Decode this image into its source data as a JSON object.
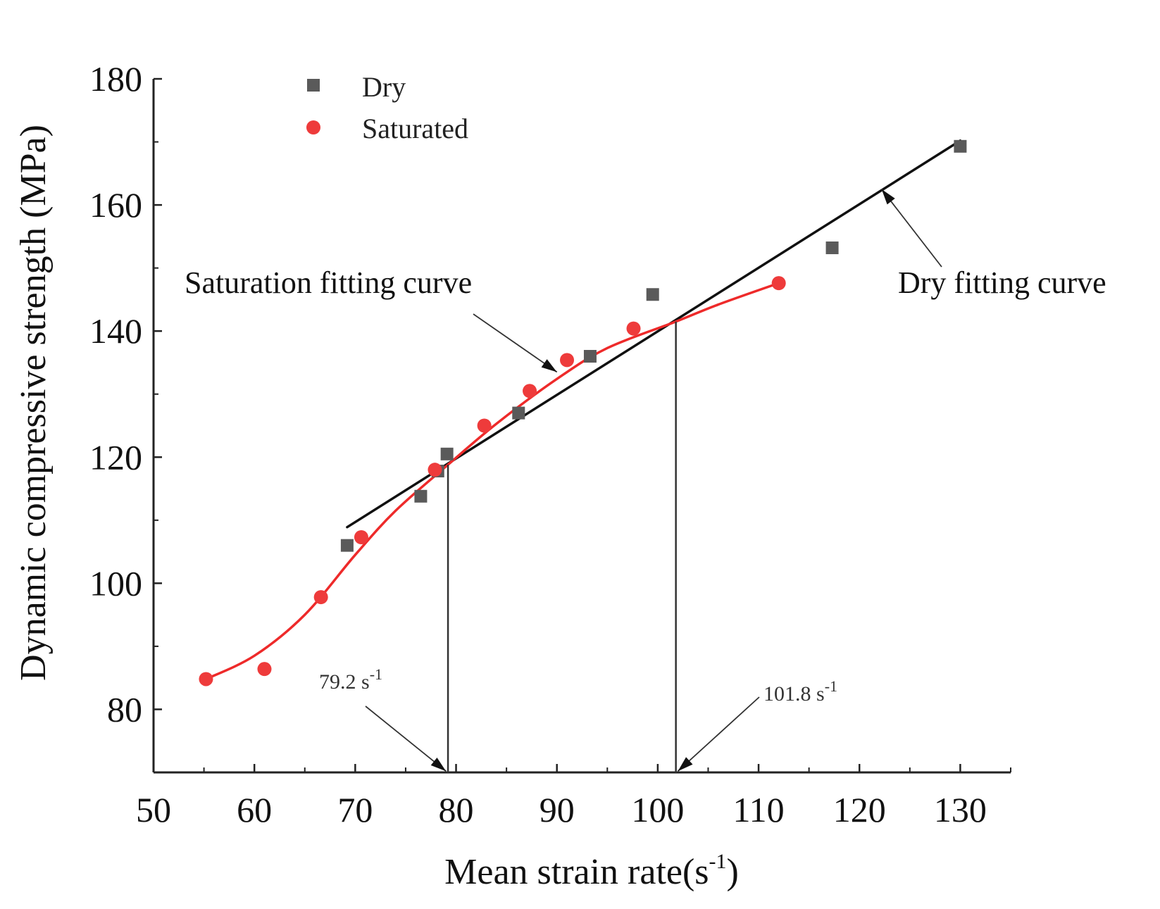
{
  "chart_data": {
    "type": "scatter",
    "title": "",
    "xlabel": "Mean strain rate(s",
    "xlabel_sup": "-1",
    "xlabel_end": ")",
    "ylabel": "Dynamic compressive strength (MPa)",
    "xlim": [
      50,
      135
    ],
    "ylim": [
      70,
      180
    ],
    "xticks": [
      "50",
      "60",
      "70",
      "80",
      "90",
      "100",
      "110",
      "120",
      "130"
    ],
    "yticks": [
      "80",
      "100",
      "120",
      "140",
      "160",
      "180"
    ],
    "grid": false,
    "legend_position": "top-left",
    "series": [
      {
        "name": "Dry",
        "marker": "square",
        "color": "#5a5a5a",
        "points": [
          {
            "x": 69.2,
            "y": 106
          },
          {
            "x": 76.5,
            "y": 113.8
          },
          {
            "x": 78.2,
            "y": 117.8
          },
          {
            "x": 79.1,
            "y": 120.5
          },
          {
            "x": 86.2,
            "y": 127
          },
          {
            "x": 93.3,
            "y": 136
          },
          {
            "x": 99.5,
            "y": 145.8
          },
          {
            "x": 117.3,
            "y": 153.2
          },
          {
            "x": 130,
            "y": 169.3
          }
        ]
      },
      {
        "name": "Saturated",
        "marker": "circle",
        "color": "#ee3b3b",
        "points": [
          {
            "x": 55.2,
            "y": 84.8
          },
          {
            "x": 61,
            "y": 86.4
          },
          {
            "x": 66.6,
            "y": 97.8
          },
          {
            "x": 70.6,
            "y": 107.3
          },
          {
            "x": 77.9,
            "y": 118
          },
          {
            "x": 82.8,
            "y": 125
          },
          {
            "x": 87.3,
            "y": 130.5
          },
          {
            "x": 91,
            "y": 135.4
          },
          {
            "x": 97.6,
            "y": 140.4
          },
          {
            "x": 112,
            "y": 147.6
          }
        ]
      }
    ],
    "fits": [
      {
        "name": "Dry fitting curve",
        "color": "#111111",
        "kind": "linear",
        "points": [
          {
            "x": 69.2,
            "y": 108.9
          },
          {
            "x": 130,
            "y": 170.2
          }
        ]
      },
      {
        "name": "Saturation fitting curve",
        "color": "#ee2a2a",
        "kind": "smooth",
        "points": [
          {
            "x": 55.2,
            "y": 84.8
          },
          {
            "x": 60,
            "y": 88.5
          },
          {
            "x": 65,
            "y": 95
          },
          {
            "x": 70,
            "y": 104.5
          },
          {
            "x": 74,
            "y": 111.5
          },
          {
            "x": 79.2,
            "y": 118.8
          },
          {
            "x": 84,
            "y": 125.3
          },
          {
            "x": 90,
            "y": 132.4
          },
          {
            "x": 95,
            "y": 137.3
          },
          {
            "x": 101.8,
            "y": 141.5
          },
          {
            "x": 106,
            "y": 144.2
          },
          {
            "x": 112,
            "y": 147.6
          }
        ]
      }
    ],
    "vlines": [
      {
        "x": 79.2,
        "y_top": 118.8
      },
      {
        "x": 101.8,
        "y_top": 141.5
      }
    ],
    "annotations": [
      {
        "text": "Saturation fitting curve",
        "size": "big",
        "arrow_tip": {
          "x": 90,
          "y": 133.5
        }
      },
      {
        "text": "Dry fitting curve",
        "size": "big",
        "arrow_tip": {
          "x": 122.2,
          "y": 162.5
        }
      },
      {
        "text": "79.2 s",
        "sup": "-1",
        "size": "small",
        "arrow_tip": {
          "x": 79.0,
          "y": 70.2
        }
      },
      {
        "text": "101.8 s",
        "sup": "-1",
        "size": "small",
        "arrow_tip": {
          "x": 102.0,
          "y": 70.2
        }
      }
    ]
  }
}
